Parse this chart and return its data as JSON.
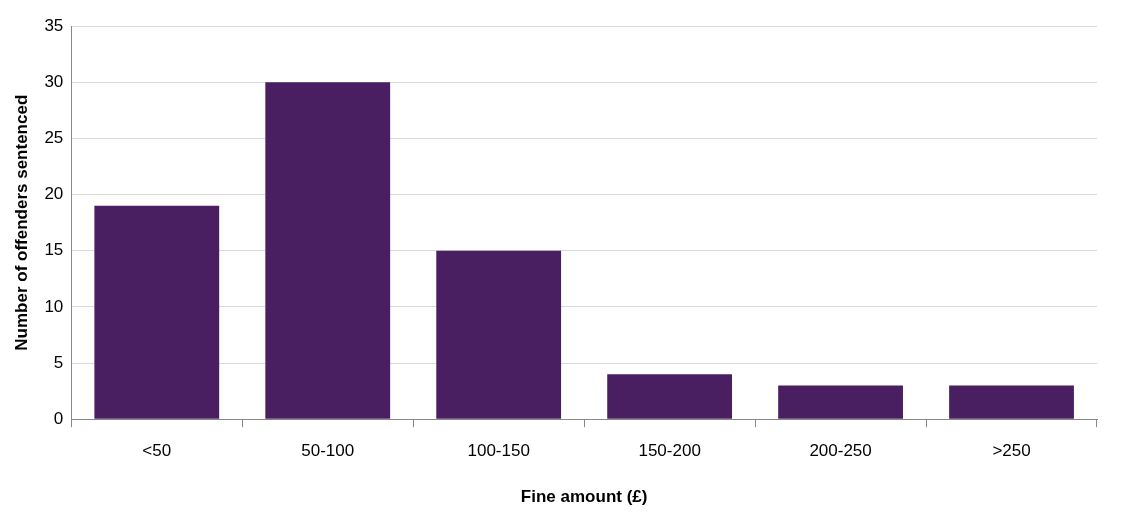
{
  "chart_data": {
    "type": "bar",
    "xlabel": "Fine amount (£)",
    "ylabel": "Number of offenders sentenced",
    "categories": [
      "<50",
      "50-100",
      "100-150",
      "150-200",
      "200-250",
      ">250"
    ],
    "values": [
      19,
      30,
      15,
      4,
      3,
      3
    ],
    "color": "#4a1f62",
    "ylim": [
      0,
      35
    ],
    "yticks": [
      0,
      5,
      10,
      15,
      20,
      25,
      30,
      35
    ],
    "grid": "y"
  }
}
